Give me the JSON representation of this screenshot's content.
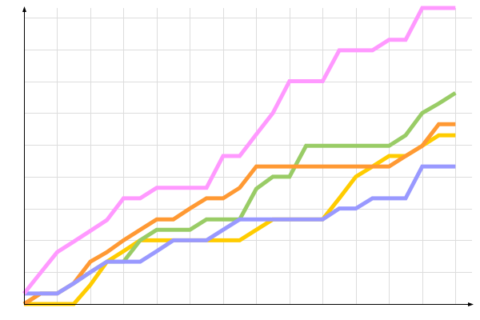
{
  "chart_data": {
    "type": "line",
    "title": "",
    "xlabel": "",
    "ylabel": "",
    "x": [
      0,
      1,
      2,
      3,
      4,
      5,
      6,
      7,
      8,
      9,
      10,
      11,
      12,
      13,
      14,
      15,
      16,
      17,
      18,
      19,
      20,
      21,
      22,
      23,
      24,
      25,
      26
    ],
    "xlim": [
      0,
      27
    ],
    "ylim": [
      0,
      9.3
    ],
    "x_grid_step": 2,
    "y_grid_step": 1,
    "grid": true,
    "tick_labels": false,
    "legend": "none",
    "series": [
      {
        "color": "#ffcc00",
        "values": [
          0,
          0,
          0,
          0,
          0.6,
          1.33,
          1.66,
          2.0,
          2.0,
          2.0,
          2.0,
          2.0,
          2.0,
          2.0,
          2.33,
          2.66,
          2.66,
          2.66,
          2.66,
          3.32,
          4.0,
          4.32,
          4.65,
          4.65,
          4.97,
          5.3,
          5.3
        ]
      },
      {
        "color": "#99cc66",
        "values": [
          0,
          0.33,
          0.33,
          0.65,
          1.0,
          1.33,
          1.33,
          2.0,
          2.33,
          2.33,
          2.33,
          2.66,
          2.66,
          2.66,
          3.62,
          4.0,
          4.0,
          4.97,
          4.97,
          4.97,
          4.97,
          4.97,
          4.97,
          5.3,
          6.0,
          6.3,
          6.63
        ]
      },
      {
        "color": "#ff9933",
        "values": [
          0,
          0.33,
          0.33,
          0.65,
          1.33,
          1.63,
          2.0,
          2.33,
          2.66,
          2.66,
          3.0,
          3.32,
          3.32,
          3.65,
          4.32,
          4.32,
          4.32,
          4.32,
          4.32,
          4.32,
          4.32,
          4.32,
          4.32,
          4.65,
          4.97,
          5.65,
          5.65
        ]
      },
      {
        "color": "#9999ff",
        "values": [
          0.33,
          0.33,
          0.33,
          0.65,
          1.0,
          1.33,
          1.33,
          1.33,
          1.66,
          2.0,
          2.0,
          2.0,
          2.33,
          2.66,
          2.66,
          2.66,
          2.66,
          2.66,
          2.66,
          3.0,
          3.0,
          3.32,
          3.32,
          3.32,
          4.32,
          4.32,
          4.32
        ]
      },
      {
        "color": "#ff99ff",
        "values": [
          0.33,
          0.98,
          1.63,
          1.96,
          2.3,
          2.64,
          3.32,
          3.32,
          3.65,
          3.65,
          3.65,
          3.65,
          4.65,
          4.65,
          5.33,
          6.0,
          7.0,
          7.0,
          7.0,
          7.97,
          7.97,
          7.97,
          8.3,
          8.3,
          9.3,
          9.3,
          9.3
        ]
      }
    ],
    "colors": {
      "grid": "#dddddd",
      "axis": "#000000"
    }
  }
}
